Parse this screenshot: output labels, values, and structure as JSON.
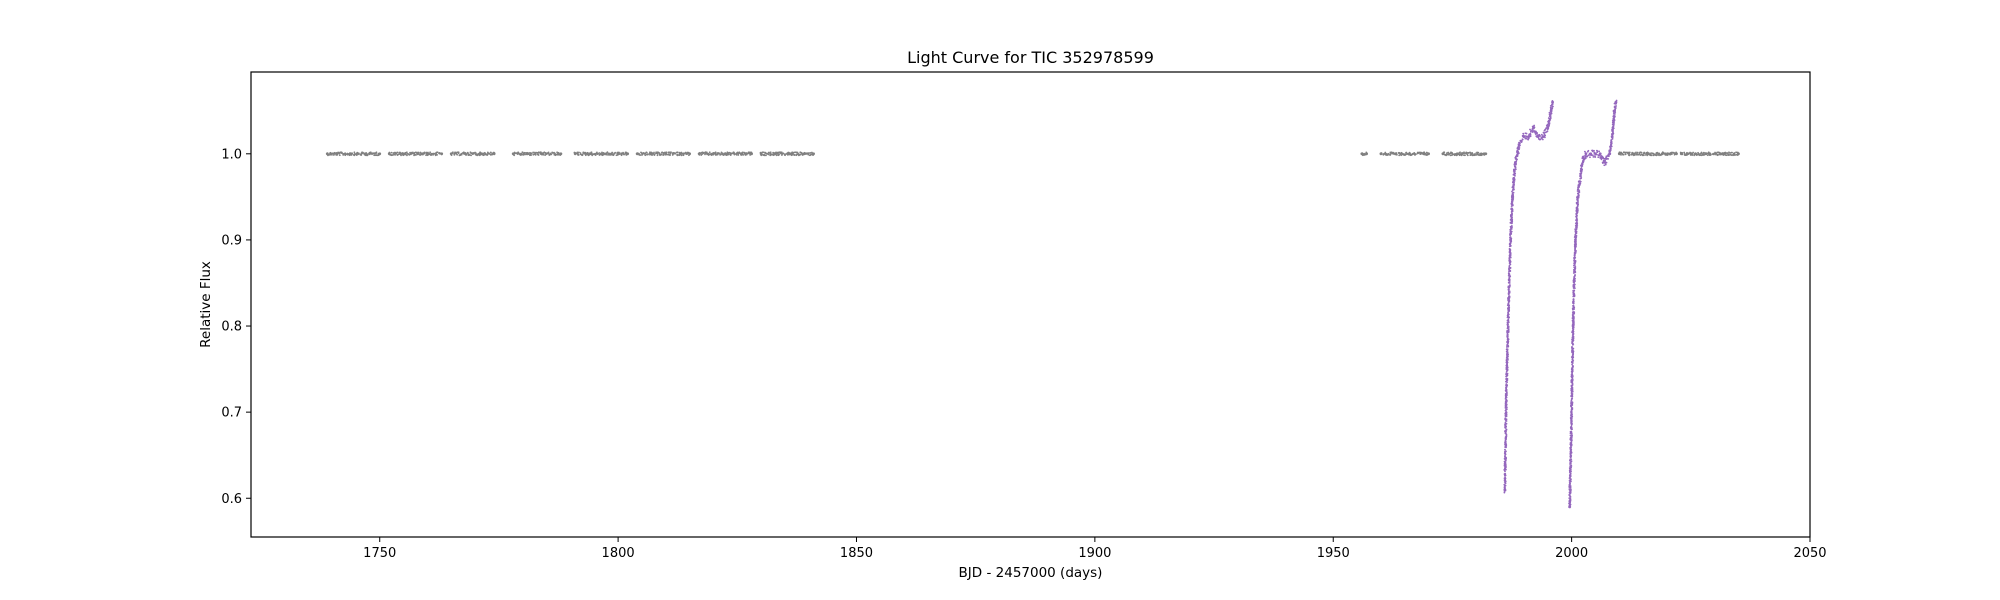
{
  "chart_data": {
    "type": "scatter",
    "title": "Light Curve for TIC 352978599",
    "xlabel": "BJD - 2457000 (days)",
    "ylabel": "Relative Flux",
    "xlim": [
      1723,
      2050
    ],
    "ylim": [
      0.555,
      1.095
    ],
    "xticks": [
      1750,
      1800,
      1850,
      1900,
      1950,
      2000,
      2050
    ],
    "xtick_labels": [
      "1750",
      "1800",
      "1850",
      "1900",
      "1950",
      "2000",
      "2050"
    ],
    "yticks": [
      0.6,
      0.7,
      0.8,
      0.9,
      1.0
    ],
    "ytick_labels": [
      "0.6",
      "0.7",
      "0.8",
      "0.9",
      "1.0"
    ],
    "grid": false,
    "legend": "none",
    "series": [
      {
        "color": "#808080",
        "style": "dots",
        "segments": [
          {
            "x": [
              1739.0,
              1741.0,
              1744.0,
              1747.0,
              1750.0
            ],
            "y": [
              1.0,
              1.0,
              1.0,
              1.0,
              1.0
            ]
          },
          {
            "x": [
              1752.0,
              1755.0,
              1758.0,
              1760.0,
              1763.0
            ],
            "y": [
              1.0,
              1.0,
              1.0,
              1.0,
              1.0
            ]
          },
          {
            "x": [
              1765.0,
              1768.0,
              1771.0,
              1774.0
            ],
            "y": [
              1.0,
              1.0,
              1.0,
              1.0
            ]
          },
          {
            "x": [
              1778.0,
              1781.0,
              1784.0,
              1788.0
            ],
            "y": [
              1.0,
              1.0,
              1.0,
              1.0
            ]
          },
          {
            "x": [
              1791.0,
              1794.0,
              1797.0,
              1800.0,
              1802.0
            ],
            "y": [
              1.0,
              1.0,
              1.0,
              1.0,
              1.0
            ]
          },
          {
            "x": [
              1804.0,
              1807.0,
              1810.0,
              1813.0,
              1815.0
            ],
            "y": [
              1.0,
              1.0,
              1.0,
              1.0,
              1.0
            ]
          },
          {
            "x": [
              1817.0,
              1820.0,
              1823.0,
              1826.0,
              1828.0
            ],
            "y": [
              1.0,
              1.0,
              1.0,
              1.0,
              1.0
            ]
          },
          {
            "x": [
              1830.0,
              1833.0,
              1836.0,
              1839.0,
              1841.0
            ],
            "y": [
              1.0,
              1.0,
              1.0,
              1.0,
              1.0
            ]
          },
          {
            "x": [
              1956.0,
              1957.0
            ],
            "y": [
              1.0,
              1.0
            ]
          },
          {
            "x": [
              1960.0,
              1963.0,
              1966.0,
              1969.0,
              1970.0
            ],
            "y": [
              1.0,
              1.0,
              1.0,
              1.0,
              1.0
            ]
          },
          {
            "x": [
              1973.0,
              1976.0,
              1979.0,
              1982.0
            ],
            "y": [
              1.0,
              1.0,
              1.0,
              1.0
            ]
          },
          {
            "x": [
              2010.0,
              2013.0,
              2016.0,
              2019.0,
              2022.0
            ],
            "y": [
              1.0,
              1.0,
              1.0,
              1.0,
              1.0
            ]
          },
          {
            "x": [
              2023.0,
              2026.0,
              2029.0,
              2032.0,
              2035.0
            ],
            "y": [
              1.0,
              1.0,
              1.0,
              1.0,
              1.0
            ]
          }
        ]
      },
      {
        "color": "#9467bd",
        "style": "dots",
        "segments": [
          {
            "x": [
              1986.0,
              1986.3,
              1986.8,
              1987.2,
              1987.6,
              1988.2,
              1989.0,
              1990.0,
              1991.0,
              1992.0,
              1993.0,
              1994.0,
              1995.0,
              1995.7,
              1996.0
            ],
            "y": [
              0.61,
              0.72,
              0.83,
              0.9,
              0.95,
              0.99,
              1.01,
              1.02,
              1.02,
              1.03,
              1.02,
              1.02,
              1.03,
              1.05,
              1.06
            ]
          },
          {
            "x": [
              1999.6,
              1999.9,
              2000.3,
              2000.8,
              2001.3,
              2002.0,
              2002.5,
              2003.0,
              2004.0,
              2005.0,
              2006.0,
              2007.0,
              2008.0,
              2008.5,
              2009.0,
              2009.3
            ],
            "y": [
              0.59,
              0.67,
              0.8,
              0.9,
              0.95,
              0.98,
              0.995,
              1.0,
              1.0,
              1.0,
              1.0,
              0.99,
              1.0,
              1.02,
              1.05,
              1.06
            ]
          }
        ]
      }
    ]
  }
}
